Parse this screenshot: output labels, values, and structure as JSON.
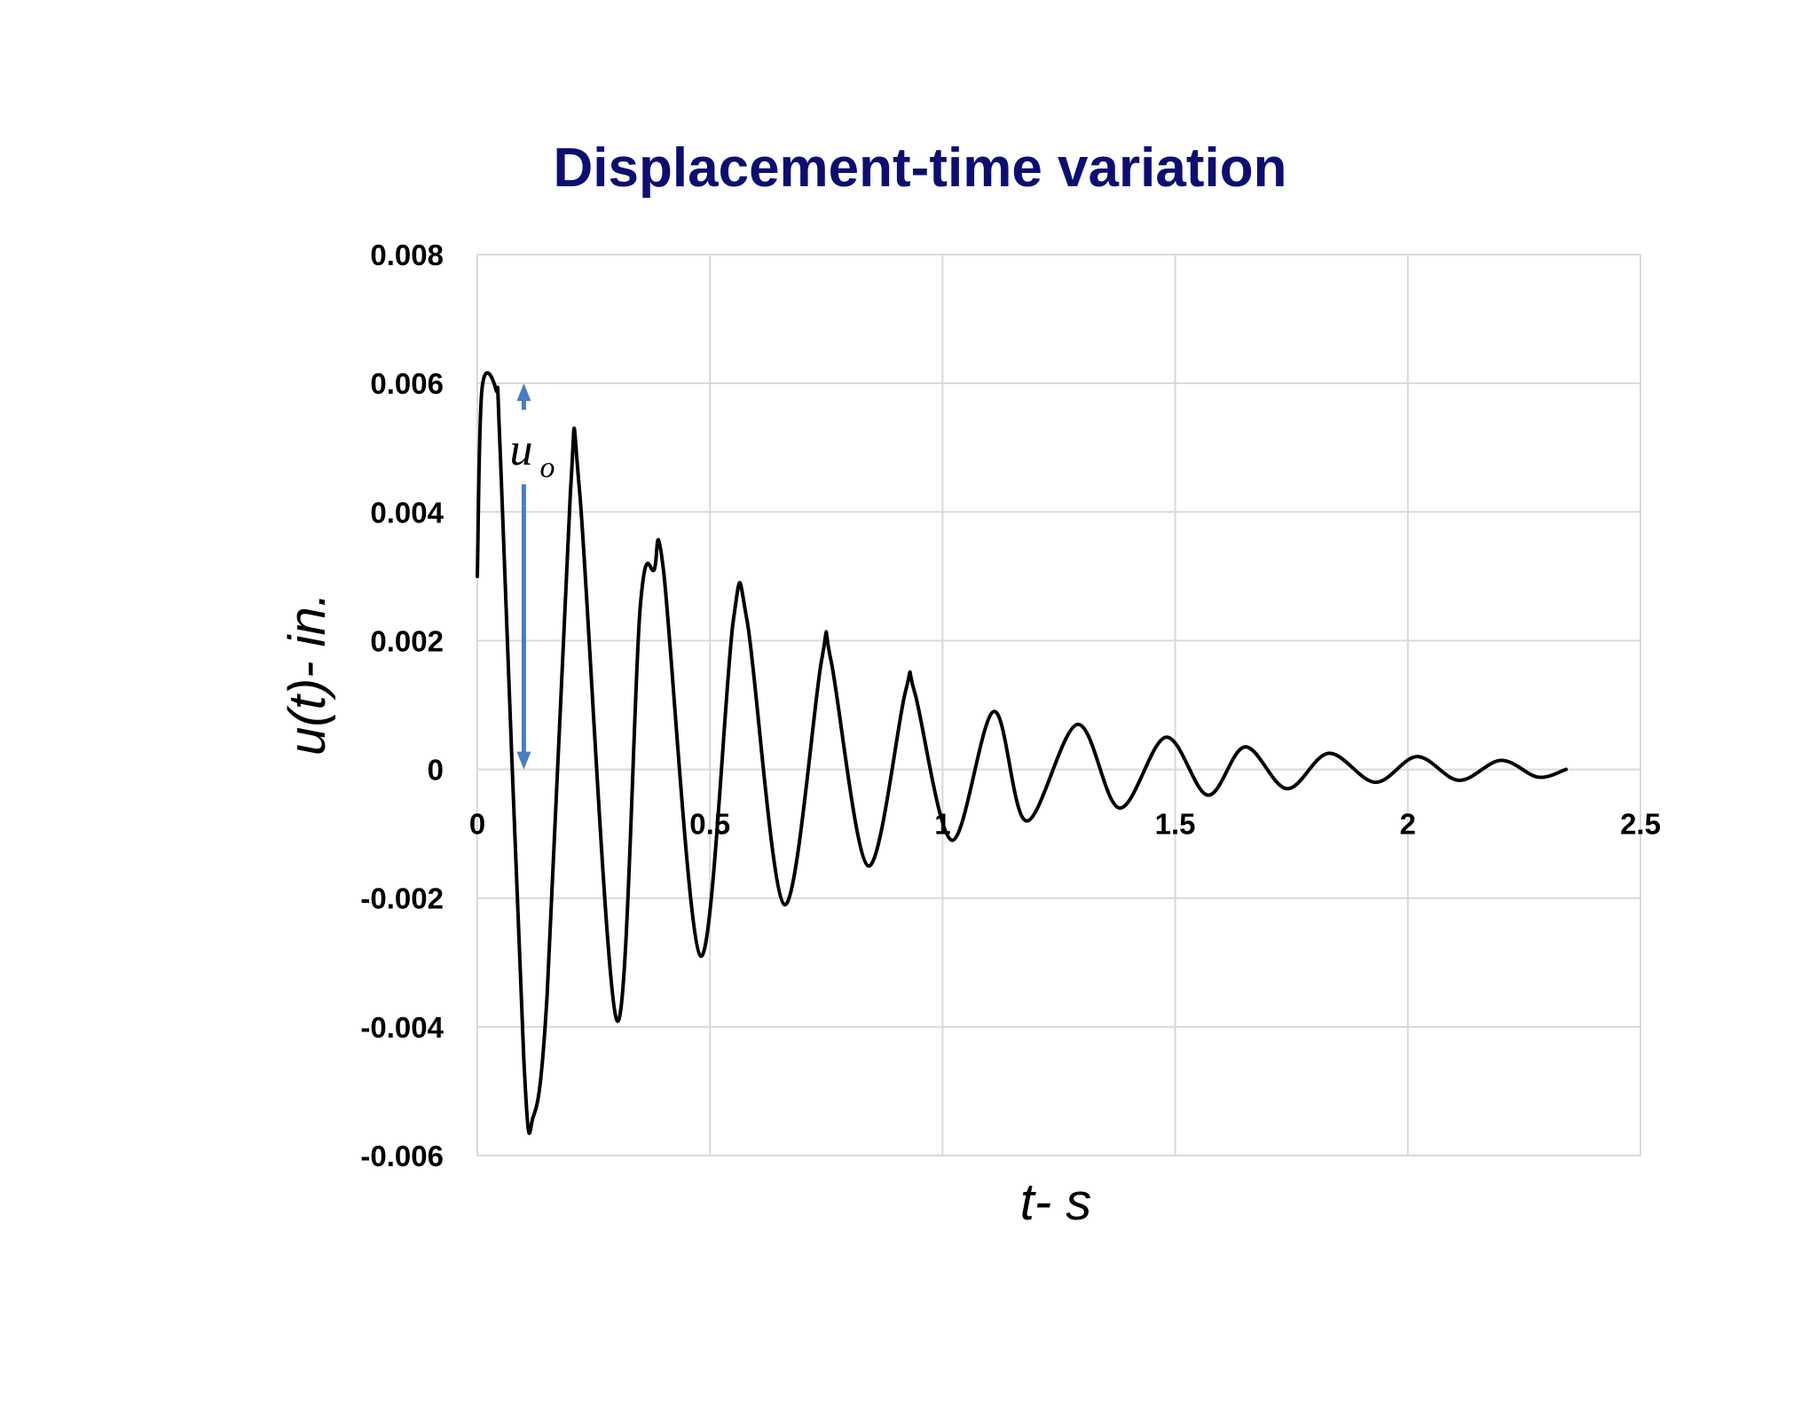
{
  "chart_data": {
    "type": "line",
    "title": "Displacement-time variation",
    "xlabel": "t- s",
    "ylabel": "u(t)- in.",
    "xlim": [
      0,
      2.5
    ],
    "ylim": [
      -0.006,
      0.008
    ],
    "x_ticks": [
      "0",
      "0.5",
      "1",
      "1.5",
      "2",
      "2.5"
    ],
    "y_ticks": [
      "0.008",
      "0.006",
      "0.004",
      "0.002",
      "0",
      "-0.002",
      "-0.004",
      "-0.006"
    ],
    "x_tick_values": [
      0,
      0.5,
      1,
      1.5,
      2,
      2.5
    ],
    "y_tick_values": [
      0.008,
      0.006,
      0.004,
      0.002,
      0,
      -0.002,
      -0.004,
      -0.006
    ],
    "grid": true,
    "legend": "none",
    "series": [
      {
        "color": "#000000",
        "points": [
          [
            0.0,
            0.003
          ],
          [
            0.01,
            0.0059
          ],
          [
            0.04,
            0.0059
          ],
          [
            0.05,
            0.0048
          ],
          [
            0.1,
            -0.0045
          ],
          [
            0.12,
            -0.0054
          ],
          [
            0.15,
            -0.0035
          ],
          [
            0.2,
            0.0043
          ],
          [
            0.22,
            0.0043
          ],
          [
            0.3,
            -0.0039
          ],
          [
            0.35,
            0.0025
          ],
          [
            0.38,
            0.0031
          ],
          [
            0.4,
            0.0031
          ],
          [
            0.48,
            -0.0029
          ],
          [
            0.55,
            0.0023
          ],
          [
            0.58,
            0.0023
          ],
          [
            0.66,
            -0.0021
          ],
          [
            0.74,
            0.0017
          ],
          [
            0.76,
            0.0017
          ],
          [
            0.84,
            -0.0015
          ],
          [
            0.92,
            0.0012
          ],
          [
            0.94,
            0.0012
          ],
          [
            1.02,
            -0.0011
          ],
          [
            1.11,
            0.0009
          ],
          [
            1.18,
            -0.0008
          ],
          [
            1.29,
            0.0007
          ],
          [
            1.38,
            -0.0006
          ],
          [
            1.48,
            0.0005
          ],
          [
            1.57,
            -0.0004
          ],
          [
            1.65,
            0.00035
          ],
          [
            1.74,
            -0.0003
          ],
          [
            1.83,
            0.00025
          ],
          [
            1.93,
            -0.0002
          ],
          [
            2.02,
            0.0002
          ],
          [
            2.11,
            -0.00017
          ],
          [
            2.2,
            0.00014
          ],
          [
            2.28,
            -0.00012
          ],
          [
            2.34,
            0.0
          ]
        ]
      }
    ],
    "annotations": [
      {
        "type": "double-arrow",
        "label": "u",
        "label_subscript": "o",
        "x": 0.1,
        "y_from": 0,
        "y_to": 0.006,
        "color": "#4a7cc0"
      }
    ]
  }
}
